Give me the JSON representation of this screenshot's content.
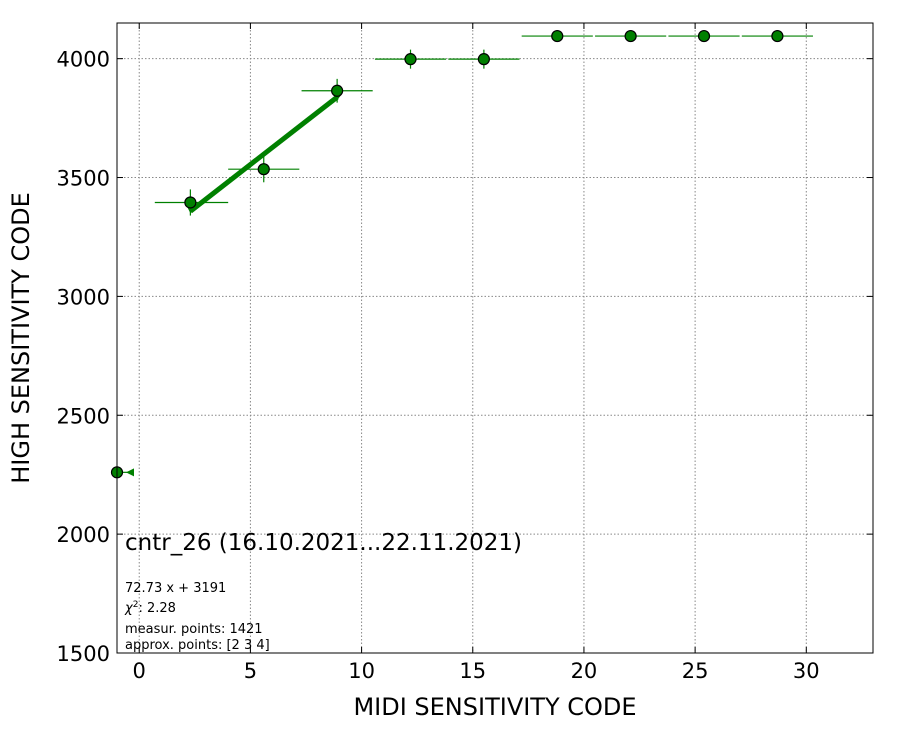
{
  "chart_data": {
    "type": "scatter",
    "xlabel": "MIDI SENSITIVITY CODE",
    "ylabel": "HIGH SENSITIVITY CODE",
    "xlim": [
      -1,
      33
    ],
    "ylim": [
      1500,
      4150
    ],
    "xticks": [
      0,
      5,
      10,
      15,
      20,
      25,
      30
    ],
    "yticks": [
      1500,
      2000,
      2500,
      3000,
      3500,
      4000
    ],
    "grid": true,
    "colors": {
      "series": "#008000",
      "marker_edge": "#000000",
      "grid": "#888888"
    },
    "points": [
      {
        "x": -1.0,
        "y": 2260,
        "xerr_minus": 0,
        "xerr_plus": 0.7,
        "yerr": 0,
        "lower_limit_marker": true
      },
      {
        "x": 2.3,
        "y": 3395,
        "xerr_minus": 1.6,
        "xerr_plus": 1.7,
        "yerr": 55
      },
      {
        "x": 5.6,
        "y": 3535,
        "xerr_minus": 1.6,
        "xerr_plus": 1.6,
        "yerr": 55
      },
      {
        "x": 8.9,
        "y": 3865,
        "xerr_minus": 1.6,
        "xerr_plus": 1.6,
        "yerr": 50
      },
      {
        "x": 12.2,
        "y": 3998,
        "xerr_minus": 1.6,
        "xerr_plus": 1.6,
        "yerr": 40
      },
      {
        "x": 15.5,
        "y": 3998,
        "xerr_minus": 1.6,
        "xerr_plus": 1.6,
        "yerr": 40
      },
      {
        "x": 18.8,
        "y": 4095,
        "xerr_minus": 1.6,
        "xerr_plus": 1.6,
        "yerr": 0
      },
      {
        "x": 22.1,
        "y": 4095,
        "xerr_minus": 1.6,
        "xerr_plus": 1.6,
        "yerr": 0
      },
      {
        "x": 25.4,
        "y": 4095,
        "xerr_minus": 1.6,
        "xerr_plus": 1.6,
        "yerr": 0
      },
      {
        "x": 28.7,
        "y": 4095,
        "xerr_minus": 1.6,
        "xerr_plus": 1.6,
        "yerr": 0
      }
    ],
    "fit_line": {
      "slope": 72.73,
      "intercept": 3191,
      "x_start": 2.3,
      "x_end": 8.9
    },
    "annotations": {
      "title": "cntr_26 (16.10.2021...22.11.2021)",
      "equation": "72.73 x + 3191",
      "chi2_label": "χ",
      "chi2_sup": "2",
      "chi2_value": ": 2.28",
      "measur_points": "measur. points: 1421",
      "approx_points": "approx. points: [2 3 4]"
    }
  }
}
